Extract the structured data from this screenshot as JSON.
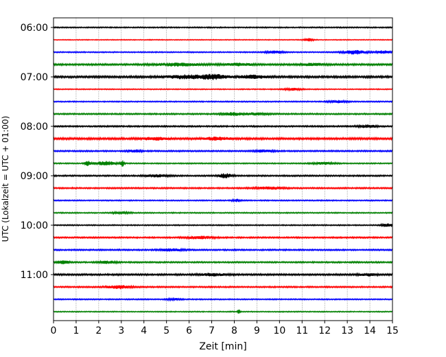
{
  "chart_data": {
    "type": "line",
    "xlabel": "Zeit  [min]",
    "ylabel": "UTC (Lokalzeit = UTC + 01:00)",
    "xlim": [
      0,
      15
    ],
    "x_ticks": [
      0,
      1,
      2,
      3,
      4,
      5,
      6,
      7,
      8,
      9,
      10,
      11,
      12,
      13,
      14,
      15
    ],
    "y_ticks": [
      {
        "label": "06:00",
        "trace_index": 0
      },
      {
        "label": "07:00",
        "trace_index": 4
      },
      {
        "label": "08:00",
        "trace_index": 8
      },
      {
        "label": "09:00",
        "trace_index": 12
      },
      {
        "label": "10:00",
        "trace_index": 16
      },
      {
        "label": "11:00",
        "trace_index": 20
      }
    ],
    "grid": "vertical-dotted",
    "traces": [
      {
        "start": "06:00",
        "color": "#000000",
        "noise": 0.8,
        "events": []
      },
      {
        "start": "06:15",
        "color": "#ff0000",
        "noise": 0.6,
        "events": [
          {
            "x": 11.3,
            "w": 0.2,
            "amp": 2.0
          }
        ]
      },
      {
        "start": "06:30",
        "color": "#0000ff",
        "noise": 0.8,
        "events": [
          {
            "x": 9.8,
            "w": 0.4,
            "amp": 1.6
          },
          {
            "x": 13.3,
            "w": 0.5,
            "amp": 2.8
          },
          {
            "x": 14.6,
            "w": 0.3,
            "amp": 2.0
          }
        ]
      },
      {
        "start": "06:45",
        "color": "#008000",
        "noise": 1.2,
        "events": [
          {
            "x": 5.5,
            "w": 1.0,
            "amp": 1.8
          },
          {
            "x": 8.2,
            "w": 0.6,
            "amp": 1.6
          },
          {
            "x": 11.5,
            "w": 0.6,
            "amp": 1.4
          }
        ]
      },
      {
        "start": "07:00",
        "color": "#000000",
        "noise": 1.4,
        "events": [
          {
            "x": 5.8,
            "w": 0.8,
            "amp": 2.2
          },
          {
            "x": 7.1,
            "w": 0.6,
            "amp": 3.0
          },
          {
            "x": 8.8,
            "w": 0.6,
            "amp": 2.0
          }
        ]
      },
      {
        "start": "07:15",
        "color": "#ff0000",
        "noise": 0.7,
        "events": [
          {
            "x": 10.6,
            "w": 0.4,
            "amp": 1.4
          }
        ]
      },
      {
        "start": "07:30",
        "color": "#0000ff",
        "noise": 0.8,
        "events": [
          {
            "x": 12.6,
            "w": 0.4,
            "amp": 1.6
          }
        ]
      },
      {
        "start": "07:45",
        "color": "#008000",
        "noise": 1.0,
        "events": [
          {
            "x": 8.0,
            "w": 0.5,
            "amp": 1.8
          },
          {
            "x": 9.0,
            "w": 0.5,
            "amp": 1.4
          }
        ]
      },
      {
        "start": "08:00",
        "color": "#000000",
        "noise": 1.0,
        "events": [
          {
            "x": 13.9,
            "w": 0.4,
            "amp": 1.8
          }
        ]
      },
      {
        "start": "08:15",
        "color": "#ff0000",
        "noise": 1.4,
        "events": [
          {
            "x": 4.5,
            "w": 0.6,
            "amp": 1.6
          },
          {
            "x": 7.2,
            "w": 0.6,
            "amp": 1.8
          }
        ]
      },
      {
        "start": "08:30",
        "color": "#0000ff",
        "noise": 1.0,
        "events": [
          {
            "x": 3.6,
            "w": 0.3,
            "amp": 1.6
          },
          {
            "x": 9.3,
            "w": 0.4,
            "amp": 1.4
          }
        ]
      },
      {
        "start": "08:45",
        "color": "#008000",
        "noise": 0.8,
        "events": [
          {
            "x": 1.5,
            "w": 0.1,
            "amp": 4.0
          },
          {
            "x": 2.3,
            "w": 0.5,
            "amp": 2.8
          },
          {
            "x": 3.05,
            "w": 0.08,
            "amp": 4.0
          },
          {
            "x": 12.0,
            "w": 0.5,
            "amp": 1.4
          }
        ]
      },
      {
        "start": "09:00",
        "color": "#000000",
        "noise": 1.0,
        "events": [
          {
            "x": 4.6,
            "w": 0.5,
            "amp": 1.6
          },
          {
            "x": 7.6,
            "w": 0.3,
            "amp": 2.8
          }
        ]
      },
      {
        "start": "09:15",
        "color": "#ff0000",
        "noise": 1.0,
        "events": [
          {
            "x": 9.6,
            "w": 0.6,
            "amp": 1.6
          }
        ]
      },
      {
        "start": "09:30",
        "color": "#0000ff",
        "noise": 0.8,
        "events": [
          {
            "x": 8.1,
            "w": 0.2,
            "amp": 1.8
          }
        ]
      },
      {
        "start": "09:45",
        "color": "#008000",
        "noise": 0.8,
        "events": [
          {
            "x": 3.0,
            "w": 0.4,
            "amp": 1.4
          }
        ]
      },
      {
        "start": "10:00",
        "color": "#000000",
        "noise": 0.8,
        "events": [
          {
            "x": 14.8,
            "w": 0.3,
            "amp": 2.0
          }
        ]
      },
      {
        "start": "10:15",
        "color": "#ff0000",
        "noise": 1.0,
        "events": [
          {
            "x": 6.5,
            "w": 0.6,
            "amp": 1.6
          }
        ]
      },
      {
        "start": "10:30",
        "color": "#0000ff",
        "noise": 1.0,
        "events": [
          {
            "x": 5.2,
            "w": 0.5,
            "amp": 1.6
          }
        ]
      },
      {
        "start": "10:45",
        "color": "#008000",
        "noise": 1.0,
        "events": [
          {
            "x": 0.4,
            "w": 0.3,
            "amp": 2.0
          },
          {
            "x": 2.4,
            "w": 0.4,
            "amp": 1.6
          }
        ]
      },
      {
        "start": "11:00",
        "color": "#000000",
        "noise": 1.2,
        "events": [
          {
            "x": 7.0,
            "w": 0.6,
            "amp": 1.6
          },
          {
            "x": 13.9,
            "w": 0.4,
            "amp": 1.6
          }
        ]
      },
      {
        "start": "11:15",
        "color": "#ff0000",
        "noise": 1.0,
        "events": [
          {
            "x": 2.9,
            "w": 0.5,
            "amp": 2.2
          }
        ]
      },
      {
        "start": "11:30",
        "color": "#0000ff",
        "noise": 0.8,
        "events": [
          {
            "x": 5.3,
            "w": 0.3,
            "amp": 1.4
          }
        ]
      },
      {
        "start": "11:45",
        "color": "#008000",
        "noise": 0.7,
        "events": [
          {
            "x": 8.2,
            "w": 0.05,
            "amp": 4.0
          }
        ]
      }
    ]
  }
}
